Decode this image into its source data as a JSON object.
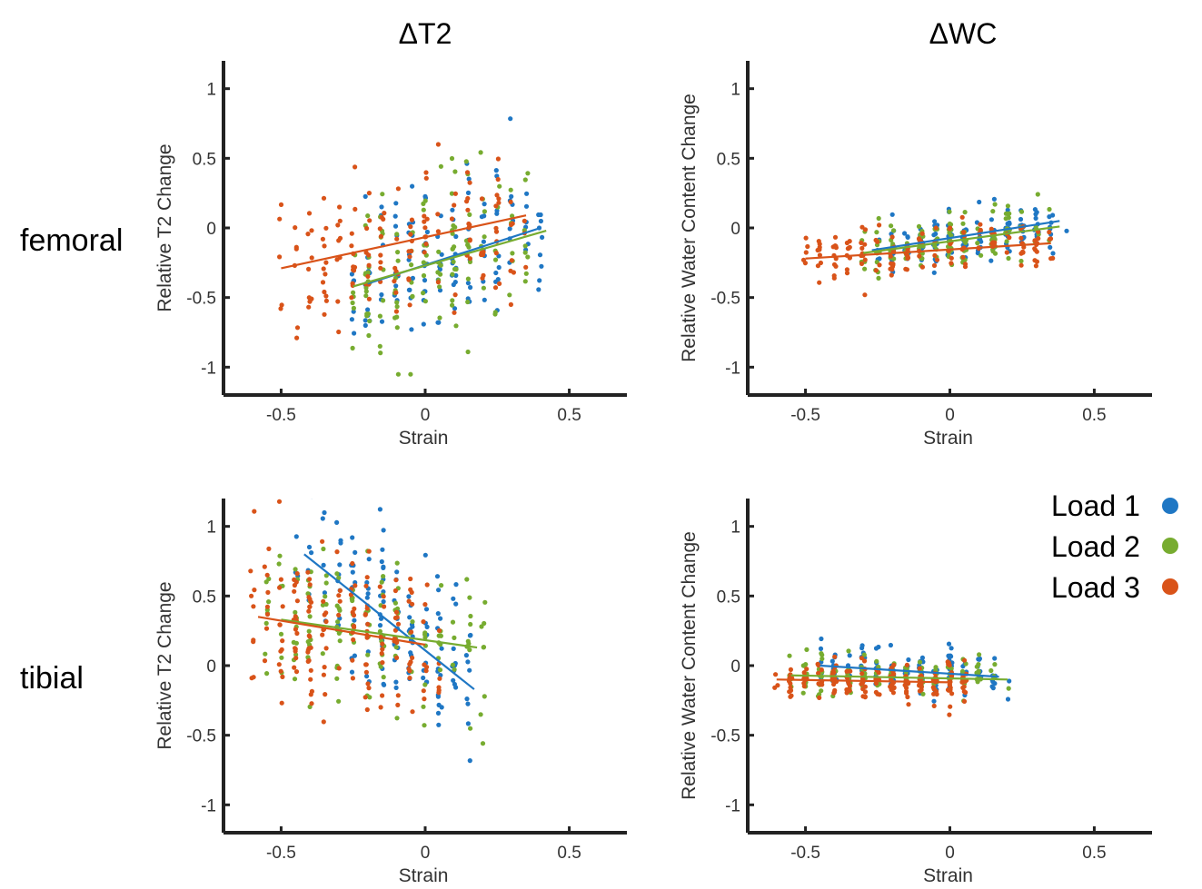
{
  "figure": {
    "column_titles": [
      "ΔT2",
      "ΔWC"
    ],
    "row_labels": [
      "femoral",
      "tibial"
    ]
  },
  "legend": [
    {
      "label": "Load 1",
      "color": "#1f77c4"
    },
    {
      "label": "Load 2",
      "color": "#77ac30"
    },
    {
      "label": "Load 3",
      "color": "#d95319"
    }
  ],
  "chart_data": [
    {
      "type": "scatter",
      "panel": "femoral-t2",
      "xlabel": "Strain",
      "ylabel": "Relative T2 Change",
      "xlim": [
        -0.7,
        0.7
      ],
      "ylim": [
        -1.2,
        1.2
      ],
      "xticks": [
        -0.5,
        0,
        0.5
      ],
      "xtick_labels": [
        "-0.5",
        "0",
        "0.5"
      ],
      "yticks": [
        -1,
        -0.5,
        0,
        0.5,
        1
      ],
      "ytick_labels": [
        "-1",
        "-0.5",
        "0",
        "0.5",
        "1"
      ],
      "grid": false,
      "series": [
        {
          "name": "Load 1",
          "color": "#1f77c4",
          "cloud": {
            "x_range": [
              -0.25,
              0.42
            ],
            "y_center": -0.1,
            "y_spread": 0.55,
            "n": 130,
            "seed": 11
          },
          "fit": {
            "x": [
              -0.2,
              0.4
            ],
            "y": [
              -0.4,
              0.0
            ]
          }
        },
        {
          "name": "Load 2",
          "color": "#77ac30",
          "cloud": {
            "x_range": [
              -0.25,
              0.38
            ],
            "y_center": -0.15,
            "y_spread": 0.5,
            "n": 130,
            "seed": 22
          },
          "fit": {
            "x": [
              -0.25,
              0.42
            ],
            "y": [
              -0.42,
              -0.02
            ]
          }
        },
        {
          "name": "Load 3",
          "color": "#d95319",
          "cloud": {
            "x_range": [
              -0.5,
              0.35
            ],
            "y_center": -0.2,
            "y_spread": 0.45,
            "n": 150,
            "seed": 33
          },
          "fit": {
            "x": [
              -0.5,
              0.35
            ],
            "y": [
              -0.29,
              0.09
            ]
          }
        }
      ]
    },
    {
      "type": "scatter",
      "panel": "femoral-wc",
      "xlabel": "Strain",
      "ylabel": "Relative Water Content Change",
      "xlim": [
        -0.7,
        0.7
      ],
      "ylim": [
        -1.2,
        1.2
      ],
      "xticks": [
        -0.5,
        0,
        0.5
      ],
      "xtick_labels": [
        "-0.5",
        "0",
        "0.5"
      ],
      "yticks": [
        -1,
        -0.5,
        0,
        0.5,
        1
      ],
      "ytick_labels": [
        "-1",
        "-0.5",
        "0",
        "0.5",
        "1"
      ],
      "grid": false,
      "series": [
        {
          "name": "Load 1",
          "color": "#1f77c4",
          "cloud": {
            "x_range": [
              -0.27,
              0.4
            ],
            "y_center": -0.08,
            "y_spread": 0.18,
            "n": 130,
            "seed": 44
          },
          "fit": {
            "x": [
              -0.27,
              0.38
            ],
            "y": [
              -0.16,
              0.05
            ]
          }
        },
        {
          "name": "Load 2",
          "color": "#77ac30",
          "cloud": {
            "x_range": [
              -0.3,
              0.35
            ],
            "y_center": -0.1,
            "y_spread": 0.18,
            "n": 130,
            "seed": 55
          },
          "fit": {
            "x": [
              -0.3,
              0.38
            ],
            "y": [
              -0.18,
              0.01
            ]
          }
        },
        {
          "name": "Load 3",
          "color": "#d95319",
          "cloud": {
            "x_range": [
              -0.5,
              0.35
            ],
            "y_center": -0.18,
            "y_spread": 0.16,
            "n": 150,
            "seed": 66
          },
          "fit": {
            "x": [
              -0.5,
              0.35
            ],
            "y": [
              -0.22,
              -0.11
            ]
          }
        }
      ]
    },
    {
      "type": "scatter",
      "panel": "tibial-t2",
      "xlabel": "Strain",
      "ylabel": "Relative T2 Change",
      "xlim": [
        -0.7,
        0.7
      ],
      "ylim": [
        -1.2,
        1.2
      ],
      "xticks": [
        -0.5,
        0,
        0.5
      ],
      "xtick_labels": [
        "-0.5",
        "0",
        "0.5"
      ],
      "yticks": [
        -1,
        -0.5,
        0,
        0.5,
        1
      ],
      "ytick_labels": [
        "-1",
        "-0.5",
        "0",
        "0.5",
        "1"
      ],
      "grid": false,
      "series": [
        {
          "name": "Load 1",
          "color": "#1f77c4",
          "cloud": {
            "x_range": [
              -0.45,
              0.15
            ],
            "y_center": 0.35,
            "y_spread": 0.55,
            "n": 140,
            "seed": 77
          },
          "fit": {
            "x": [
              -0.42,
              0.17
            ],
            "y": [
              0.8,
              -0.17
            ]
          }
        },
        {
          "name": "Load 2",
          "color": "#77ac30",
          "cloud": {
            "x_range": [
              -0.55,
              0.2
            ],
            "y_center": 0.2,
            "y_spread": 0.5,
            "n": 140,
            "seed": 88
          },
          "fit": {
            "x": [
              -0.5,
              0.18
            ],
            "y": [
              0.33,
              0.13
            ]
          }
        },
        {
          "name": "Load 3",
          "color": "#d95319",
          "cloud": {
            "x_range": [
              -0.6,
              0.05
            ],
            "y_center": 0.2,
            "y_spread": 0.55,
            "n": 170,
            "seed": 99
          },
          "fit": {
            "x": [
              -0.58,
              0.0
            ],
            "y": [
              0.35,
              0.15
            ]
          }
        }
      ]
    },
    {
      "type": "scatter",
      "panel": "tibial-wc",
      "xlabel": "Strain",
      "ylabel": "Relative Water Content Change",
      "xlim": [
        -0.7,
        0.7
      ],
      "ylim": [
        -1.2,
        1.2
      ],
      "xticks": [
        -0.5,
        0,
        0.5
      ],
      "xtick_labels": [
        "-0.5",
        "0",
        "0.5"
      ],
      "yticks": [
        -1,
        -0.5,
        0,
        0.5,
        1
      ],
      "ytick_labels": [
        "-1",
        "-0.5",
        "0",
        "0.5",
        "1"
      ],
      "grid": false,
      "series": [
        {
          "name": "Load 1",
          "color": "#1f77c4",
          "cloud": {
            "x_range": [
              -0.45,
              0.18
            ],
            "y_center": -0.03,
            "y_spread": 0.14,
            "n": 130,
            "seed": 111
          },
          "fit": {
            "x": [
              -0.45,
              0.17
            ],
            "y": [
              0.0,
              -0.08
            ]
          }
        },
        {
          "name": "Load 2",
          "color": "#77ac30",
          "cloud": {
            "x_range": [
              -0.55,
              0.18
            ],
            "y_center": -0.07,
            "y_spread": 0.13,
            "n": 130,
            "seed": 122
          },
          "fit": {
            "x": [
              -0.55,
              0.2
            ],
            "y": [
              -0.07,
              -0.1
            ]
          }
        },
        {
          "name": "Load 3",
          "color": "#d95319",
          "cloud": {
            "x_range": [
              -0.6,
              0.05
            ],
            "y_center": -0.11,
            "y_spread": 0.12,
            "n": 170,
            "seed": 133
          },
          "fit": {
            "x": [
              -0.6,
              0.0
            ],
            "y": [
              -0.1,
              -0.12
            ]
          }
        }
      ]
    }
  ]
}
